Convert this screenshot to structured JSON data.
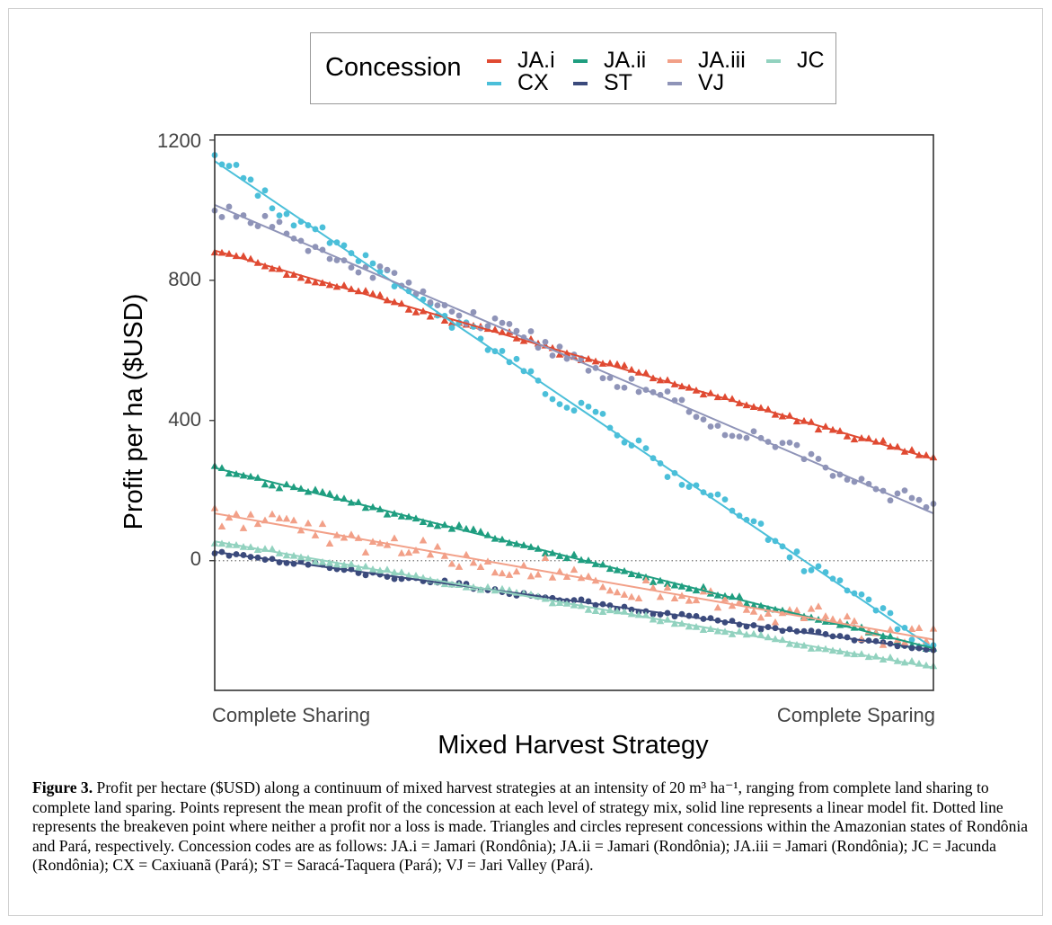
{
  "chart_data": {
    "type": "scatter",
    "xlabel": "Mixed Harvest Strategy",
    "ylabel": "Profit per ha ($USD)",
    "x_tick_labels": [
      "Complete Sharing",
      "Complete Sparing"
    ],
    "x": [
      0,
      1
    ],
    "y_ticks": [
      0,
      400,
      800,
      1200
    ],
    "ylim": [
      -370,
      1215
    ],
    "xlim": [
      0,
      1
    ],
    "grid": false,
    "reference_line": {
      "y": 0,
      "style": "dotted"
    },
    "legend": {
      "title": "Concession",
      "placement": "top"
    },
    "series": [
      {
        "name": "JA.i",
        "color": "#e04a32",
        "marker": "triangle",
        "state": "Rondônia",
        "fit": {
          "start": 885,
          "end": 290
        },
        "noise": 8
      },
      {
        "name": "CX",
        "color": "#4bbfd9",
        "marker": "circle",
        "state": "Pará",
        "fit": {
          "start": 1140,
          "end": -250
        },
        "noise": 22
      },
      {
        "name": "JA.ii",
        "color": "#1f9e80",
        "marker": "triangle",
        "state": "Rondônia",
        "fit": {
          "start": 265,
          "end": -250
        },
        "noise": 8
      },
      {
        "name": "ST",
        "color": "#3b4a7c",
        "marker": "circle",
        "state": "Pará",
        "fit": {
          "start": 25,
          "end": -255
        },
        "noise": 6
      },
      {
        "name": "JA.iii",
        "color": "#f2a088",
        "marker": "triangle",
        "state": "Rondônia",
        "fit": {
          "start": 135,
          "end": -225
        },
        "noise": 28
      },
      {
        "name": "VJ",
        "color": "#8f94b8",
        "marker": "circle",
        "state": "Pará",
        "fit": {
          "start": 1015,
          "end": 135
        },
        "noise": 22
      },
      {
        "name": "JC",
        "color": "#92d2bf",
        "marker": "triangle",
        "state": "Rondônia",
        "fit": {
          "start": 55,
          "end": -305
        },
        "noise": 6
      }
    ]
  },
  "caption": {
    "label": "Figure 3.",
    "text": "Profit per hectare ($USD) along a continuum of mixed harvest strategies at an intensity of 20 m³ ha⁻¹, ranging from complete land sharing to complete land sparing. Points represent the mean profit of the concession at each level of strategy mix, solid line represents a linear model fit. Dotted line represents the breakeven point where neither a profit nor a loss is made. Triangles and circles represent concessions within the Amazonian states of Rondônia and Pará, respectively. Concession codes are as follows: JA.i = Jamari (Rondônia); JA.ii = Jamari (Rondônia); JA.iii = Jamari (Rondônia); JC = Jacunda (Rondônia); CX = Caxiuanã (Pará); ST = Saracá-Taquera (Pará); VJ = Jari Valley (Pará)."
  }
}
